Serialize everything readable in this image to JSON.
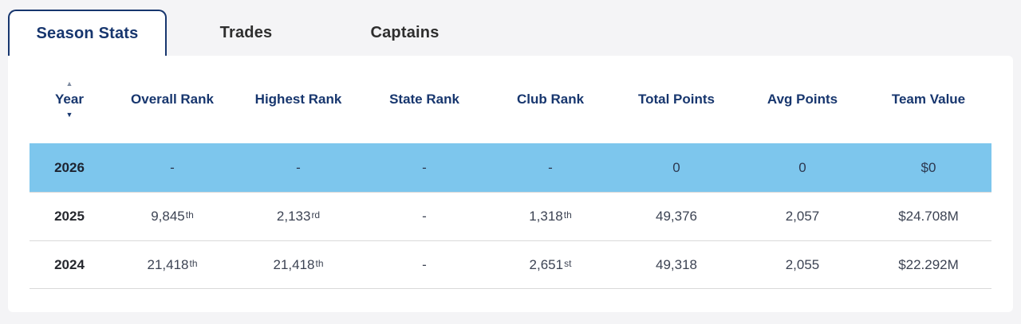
{
  "tabs": [
    {
      "label": "Season Stats",
      "active": true
    },
    {
      "label": "Trades",
      "active": false
    },
    {
      "label": "Captains",
      "active": false
    }
  ],
  "table": {
    "columns": [
      "Year",
      "Overall Rank",
      "Highest Rank",
      "State Rank",
      "Club Rank",
      "Total Points",
      "Avg Points",
      "Team Value"
    ],
    "sort": {
      "column": "Year",
      "direction": "desc"
    },
    "rows": [
      {
        "year": "2026",
        "highlighted": true,
        "cells": [
          {
            "value": "-"
          },
          {
            "value": "-"
          },
          {
            "value": "-"
          },
          {
            "value": "-"
          },
          {
            "value": "0"
          },
          {
            "value": "0"
          },
          {
            "value": "$0"
          }
        ]
      },
      {
        "year": "2025",
        "highlighted": false,
        "cells": [
          {
            "value": "9,845",
            "suffix": "th"
          },
          {
            "value": "2,133",
            "suffix": "rd"
          },
          {
            "value": "-"
          },
          {
            "value": "1,318",
            "suffix": "th"
          },
          {
            "value": "49,376"
          },
          {
            "value": "2,057"
          },
          {
            "value": "$24.708M"
          }
        ]
      },
      {
        "year": "2024",
        "highlighted": false,
        "cells": [
          {
            "value": "21,418",
            "suffix": "th"
          },
          {
            "value": "21,418",
            "suffix": "th"
          },
          {
            "value": "-"
          },
          {
            "value": "2,651",
            "suffix": "st"
          },
          {
            "value": "49,318"
          },
          {
            "value": "2,055"
          },
          {
            "value": "$22.292M"
          }
        ]
      }
    ]
  },
  "colors": {
    "navy": "#17366e",
    "page_bg": "#f4f4f6",
    "highlight": "#7dc6ed",
    "tab_inactive": "#2e2e2e",
    "cell_text": "#3c4353",
    "separator": "#d9d9d9"
  }
}
